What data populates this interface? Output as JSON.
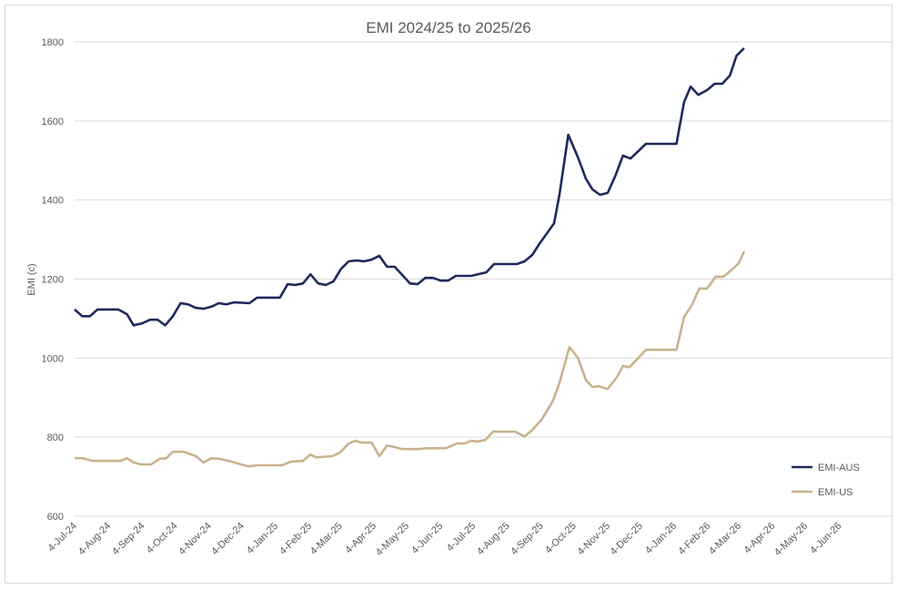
{
  "chart_data": {
    "type": "line",
    "title": "EMI 2024/25 to 2025/26",
    "xlabel": "",
    "ylabel": "EMI (c)",
    "ylim": [
      600,
      1800
    ],
    "yticks": [
      "600",
      "800",
      "1000",
      "1200",
      "1400",
      "1600",
      "1800"
    ],
    "xlim": [
      "2024-07-04",
      "2026-07-22"
    ],
    "xticks": [
      {
        "date": "2024-07-04",
        "label": "4-Jul-24"
      },
      {
        "date": "2024-08-04",
        "label": "4-Aug-24"
      },
      {
        "date": "2024-09-04",
        "label": "4-Sep-24"
      },
      {
        "date": "2024-10-04",
        "label": "4-Oct-24"
      },
      {
        "date": "2024-11-04",
        "label": "4-Nov-24"
      },
      {
        "date": "2024-12-04",
        "label": "4-Dec-24"
      },
      {
        "date": "2025-01-04",
        "label": "4-Jan-25"
      },
      {
        "date": "2025-02-04",
        "label": "4-Feb-25"
      },
      {
        "date": "2025-03-04",
        "label": "4-Mar-25"
      },
      {
        "date": "2025-04-04",
        "label": "4-Apr-25"
      },
      {
        "date": "2025-05-04",
        "label": "4-May-25"
      },
      {
        "date": "2025-06-04",
        "label": "4-Jun-25"
      },
      {
        "date": "2025-07-04",
        "label": "4-Jul-25"
      },
      {
        "date": "2025-08-04",
        "label": "4-Aug-25"
      },
      {
        "date": "2025-09-04",
        "label": "4-Sep-25"
      },
      {
        "date": "2025-10-04",
        "label": "4-Oct-25"
      },
      {
        "date": "2025-11-04",
        "label": "4-Nov-25"
      },
      {
        "date": "2025-12-04",
        "label": "4-Dec-25"
      },
      {
        "date": "2026-01-04",
        "label": "4-Jan-26"
      },
      {
        "date": "2026-02-04",
        "label": "4-Feb-26"
      },
      {
        "date": "2026-03-04",
        "label": "4-Mar-26"
      },
      {
        "date": "2026-04-04",
        "label": "4-Apr-26"
      },
      {
        "date": "2026-05-04",
        "label": "4-May-26"
      },
      {
        "date": "2026-06-04",
        "label": "4-Jun-26"
      }
    ],
    "grid": true,
    "legend_position": "right",
    "series": [
      {
        "name": "EMI-AUS",
        "color": "#1f2a5c",
        "points": [
          [
            "2024-07-04",
            1123
          ],
          [
            "2024-07-11",
            1106
          ],
          [
            "2024-07-18",
            1106
          ],
          [
            "2024-07-25",
            1123
          ],
          [
            "2024-08-13",
            1123
          ],
          [
            "2024-08-21",
            1111
          ],
          [
            "2024-08-27",
            1083
          ],
          [
            "2024-09-04",
            1088
          ],
          [
            "2024-09-11",
            1097
          ],
          [
            "2024-09-18",
            1097
          ],
          [
            "2024-09-25",
            1083
          ],
          [
            "2024-10-02",
            1106
          ],
          [
            "2024-10-09",
            1139
          ],
          [
            "2024-10-16",
            1136
          ],
          [
            "2024-10-23",
            1127
          ],
          [
            "2024-10-30",
            1125
          ],
          [
            "2024-11-06",
            1130
          ],
          [
            "2024-11-13",
            1139
          ],
          [
            "2024-11-20",
            1136
          ],
          [
            "2024-11-27",
            1141
          ],
          [
            "2024-12-11",
            1139
          ],
          [
            "2024-12-18",
            1153
          ],
          [
            "2025-01-08",
            1153
          ],
          [
            "2025-01-15",
            1187
          ],
          [
            "2025-01-22",
            1185
          ],
          [
            "2025-01-29",
            1189
          ],
          [
            "2025-02-05",
            1212
          ],
          [
            "2025-02-12",
            1189
          ],
          [
            "2025-02-19",
            1185
          ],
          [
            "2025-02-26",
            1194
          ],
          [
            "2025-03-05",
            1226
          ],
          [
            "2025-03-12",
            1245
          ],
          [
            "2025-03-19",
            1247
          ],
          [
            "2025-03-26",
            1245
          ],
          [
            "2025-04-02",
            1249
          ],
          [
            "2025-04-09",
            1259
          ],
          [
            "2025-04-16",
            1231
          ],
          [
            "2025-04-23",
            1231
          ],
          [
            "2025-05-07",
            1189
          ],
          [
            "2025-05-14",
            1187
          ],
          [
            "2025-05-21",
            1203
          ],
          [
            "2025-05-28",
            1203
          ],
          [
            "2025-06-04",
            1196
          ],
          [
            "2025-06-11",
            1196
          ],
          [
            "2025-06-18",
            1208
          ],
          [
            "2025-07-02",
            1208
          ],
          [
            "2025-07-16",
            1217
          ],
          [
            "2025-07-23",
            1238
          ],
          [
            "2025-08-13",
            1238
          ],
          [
            "2025-08-20",
            1245
          ],
          [
            "2025-08-27",
            1261
          ],
          [
            "2025-09-03",
            1291
          ],
          [
            "2025-09-09",
            1314
          ],
          [
            "2025-09-16",
            1341
          ],
          [
            "2025-09-21",
            1415
          ],
          [
            "2025-09-29",
            1565
          ],
          [
            "2025-10-08",
            1507
          ],
          [
            "2025-10-15",
            1454
          ],
          [
            "2025-10-21",
            1427
          ],
          [
            "2025-10-28",
            1413
          ],
          [
            "2025-11-04",
            1418
          ],
          [
            "2025-11-11",
            1461
          ],
          [
            "2025-11-18",
            1512
          ],
          [
            "2025-11-25",
            1505
          ],
          [
            "2025-12-09",
            1542
          ],
          [
            "2026-01-06",
            1542
          ],
          [
            "2026-01-13",
            1648
          ],
          [
            "2026-01-19",
            1687
          ],
          [
            "2026-01-26",
            1666
          ],
          [
            "2026-02-03",
            1678
          ],
          [
            "2026-02-10",
            1694
          ],
          [
            "2026-02-17",
            1694
          ],
          [
            "2026-02-24",
            1715
          ],
          [
            "2026-03-02",
            1765
          ],
          [
            "2026-03-09",
            1784
          ]
        ]
      },
      {
        "name": "EMI-US",
        "color": "#c9b28e",
        "points": [
          [
            "2024-07-04",
            747
          ],
          [
            "2024-07-11",
            747
          ],
          [
            "2024-07-21",
            740
          ],
          [
            "2024-08-15",
            740
          ],
          [
            "2024-08-21",
            747
          ],
          [
            "2024-08-27",
            736
          ],
          [
            "2024-09-03",
            731
          ],
          [
            "2024-09-12",
            731
          ],
          [
            "2024-09-20",
            745
          ],
          [
            "2024-09-26",
            747
          ],
          [
            "2024-10-02",
            763
          ],
          [
            "2024-10-12",
            763
          ],
          [
            "2024-10-23",
            752
          ],
          [
            "2024-10-30",
            736
          ],
          [
            "2024-11-06",
            747
          ],
          [
            "2024-11-14",
            745
          ],
          [
            "2024-11-25",
            738
          ],
          [
            "2024-12-10",
            726
          ],
          [
            "2024-12-18",
            729
          ],
          [
            "2025-01-10",
            729
          ],
          [
            "2025-01-18",
            738
          ],
          [
            "2025-01-29",
            740
          ],
          [
            "2025-02-05",
            756
          ],
          [
            "2025-02-10",
            749
          ],
          [
            "2025-02-25",
            752
          ],
          [
            "2025-03-04",
            761
          ],
          [
            "2025-03-12",
            784
          ],
          [
            "2025-03-18",
            791
          ],
          [
            "2025-03-24",
            786
          ],
          [
            "2025-04-02",
            786
          ],
          [
            "2025-04-09",
            752
          ],
          [
            "2025-04-16",
            779
          ],
          [
            "2025-04-23",
            775
          ],
          [
            "2025-04-30",
            770
          ],
          [
            "2025-05-15",
            770
          ],
          [
            "2025-05-22",
            772
          ],
          [
            "2025-06-09",
            772
          ],
          [
            "2025-06-19",
            784
          ],
          [
            "2025-06-26",
            784
          ],
          [
            "2025-07-02",
            791
          ],
          [
            "2025-07-08",
            789
          ],
          [
            "2025-07-15",
            793
          ],
          [
            "2025-07-22",
            814
          ],
          [
            "2025-08-11",
            814
          ],
          [
            "2025-08-20",
            802
          ],
          [
            "2025-08-27",
            818
          ],
          [
            "2025-09-05",
            846
          ],
          [
            "2025-09-15",
            892
          ],
          [
            "2025-09-21",
            938
          ],
          [
            "2025-09-30",
            1028
          ],
          [
            "2025-10-08",
            1000
          ],
          [
            "2025-10-15",
            945
          ],
          [
            "2025-10-21",
            927
          ],
          [
            "2025-10-27",
            929
          ],
          [
            "2025-11-04",
            922
          ],
          [
            "2025-11-12",
            950
          ],
          [
            "2025-11-18",
            980
          ],
          [
            "2025-11-24",
            977
          ],
          [
            "2025-12-03",
            1003
          ],
          [
            "2025-12-09",
            1021
          ],
          [
            "2026-01-06",
            1021
          ],
          [
            "2026-01-13",
            1104
          ],
          [
            "2026-01-20",
            1134
          ],
          [
            "2026-01-27",
            1176
          ],
          [
            "2026-02-03",
            1176
          ],
          [
            "2026-02-11",
            1206
          ],
          [
            "2026-02-18",
            1206
          ],
          [
            "2026-02-25",
            1222
          ],
          [
            "2026-03-04",
            1240
          ],
          [
            "2026-03-09",
            1270
          ]
        ]
      }
    ]
  }
}
